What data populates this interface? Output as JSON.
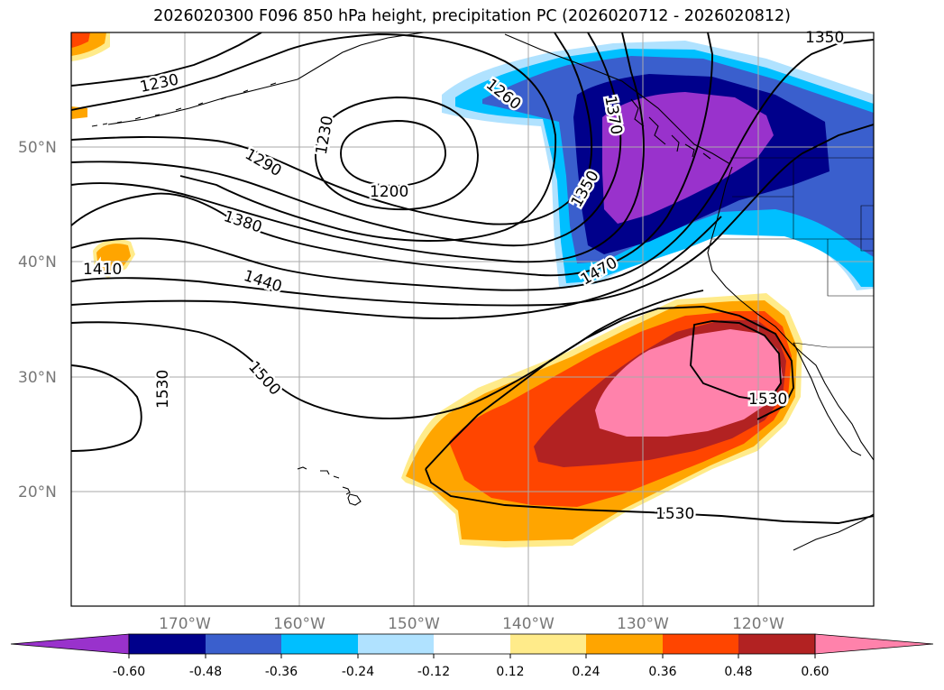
{
  "title": "2026020300 F096 850 hPa height, precipitation PC (2026020712 - 2026020812)",
  "map": {
    "lon_range": [
      -180,
      -110
    ],
    "lat_range": [
      10,
      60
    ],
    "gridline_color": "#aaaaaa",
    "tick_label_color": "#777777",
    "lat_ticks": [
      {
        "value": 50,
        "label": "50°N"
      },
      {
        "value": 40,
        "label": "40°N"
      },
      {
        "value": 30,
        "label": "30°N"
      },
      {
        "value": 20,
        "label": "20°N"
      }
    ],
    "lon_ticks": [
      {
        "value": -170,
        "label": "170°W"
      },
      {
        "value": -160,
        "label": "160°W"
      },
      {
        "value": -150,
        "label": "150°W"
      },
      {
        "value": -140,
        "label": "140°W"
      },
      {
        "value": -130,
        "label": "130°W"
      },
      {
        "value": -120,
        "label": "120°W"
      }
    ],
    "contour_labels": [
      "1350",
      "1230",
      "1260",
      "1370",
      "1230",
      "1290",
      "1200",
      "1350",
      "1380",
      "1410",
      "1440",
      "1470",
      "1500",
      "1530",
      "1530",
      "1530"
    ]
  },
  "colorbar": {
    "ticks": [
      "-0.60",
      "-0.48",
      "-0.36",
      "-0.24",
      "-0.12",
      "0.12",
      "0.24",
      "0.36",
      "0.48",
      "0.60"
    ],
    "colors": [
      "#9932cc",
      "#00008b",
      "#3a5fcd",
      "#00bfff",
      "#b0e2ff",
      "#ffffff",
      "#ffeb8a",
      "#ffa500",
      "#ff4500",
      "#b22222",
      "#ff82ab"
    ]
  }
}
